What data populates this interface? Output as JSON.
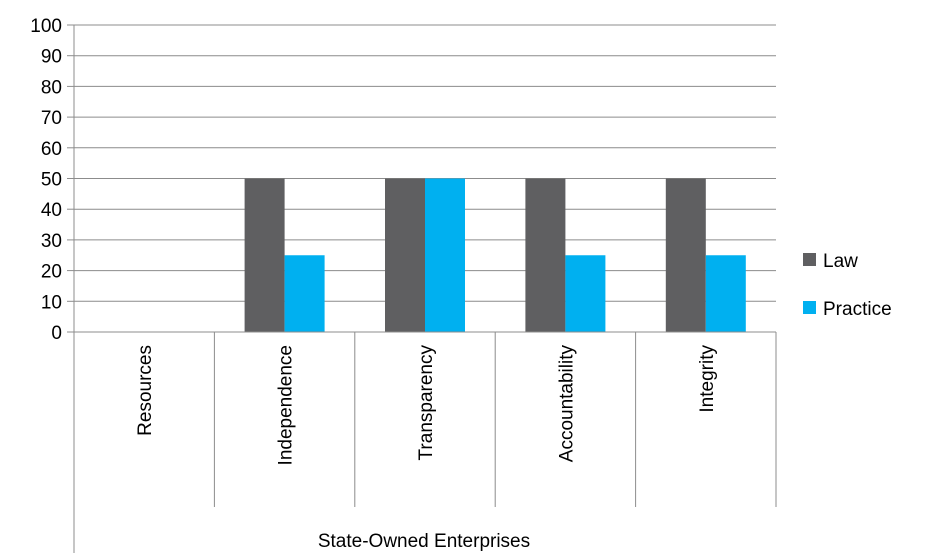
{
  "chart_data": {
    "type": "bar",
    "title": "",
    "xlabel": "",
    "ylabel": "",
    "ylim": [
      0,
      100
    ],
    "yticks": [
      0,
      10,
      20,
      30,
      40,
      50,
      60,
      70,
      80,
      90,
      100
    ],
    "grid": true,
    "legend_position": "right",
    "group_label": "State-Owned Enterprises",
    "categories": [
      "Resources",
      "Independence",
      "Transparency",
      "Accountability",
      "Integrity"
    ],
    "series": [
      {
        "name": "Law",
        "color": "#5f5f61",
        "values": [
          0,
          50,
          50,
          50,
          50
        ]
      },
      {
        "name": "Practice",
        "color": "#00b0f0",
        "values": [
          0,
          25,
          50,
          25,
          25
        ]
      }
    ]
  }
}
